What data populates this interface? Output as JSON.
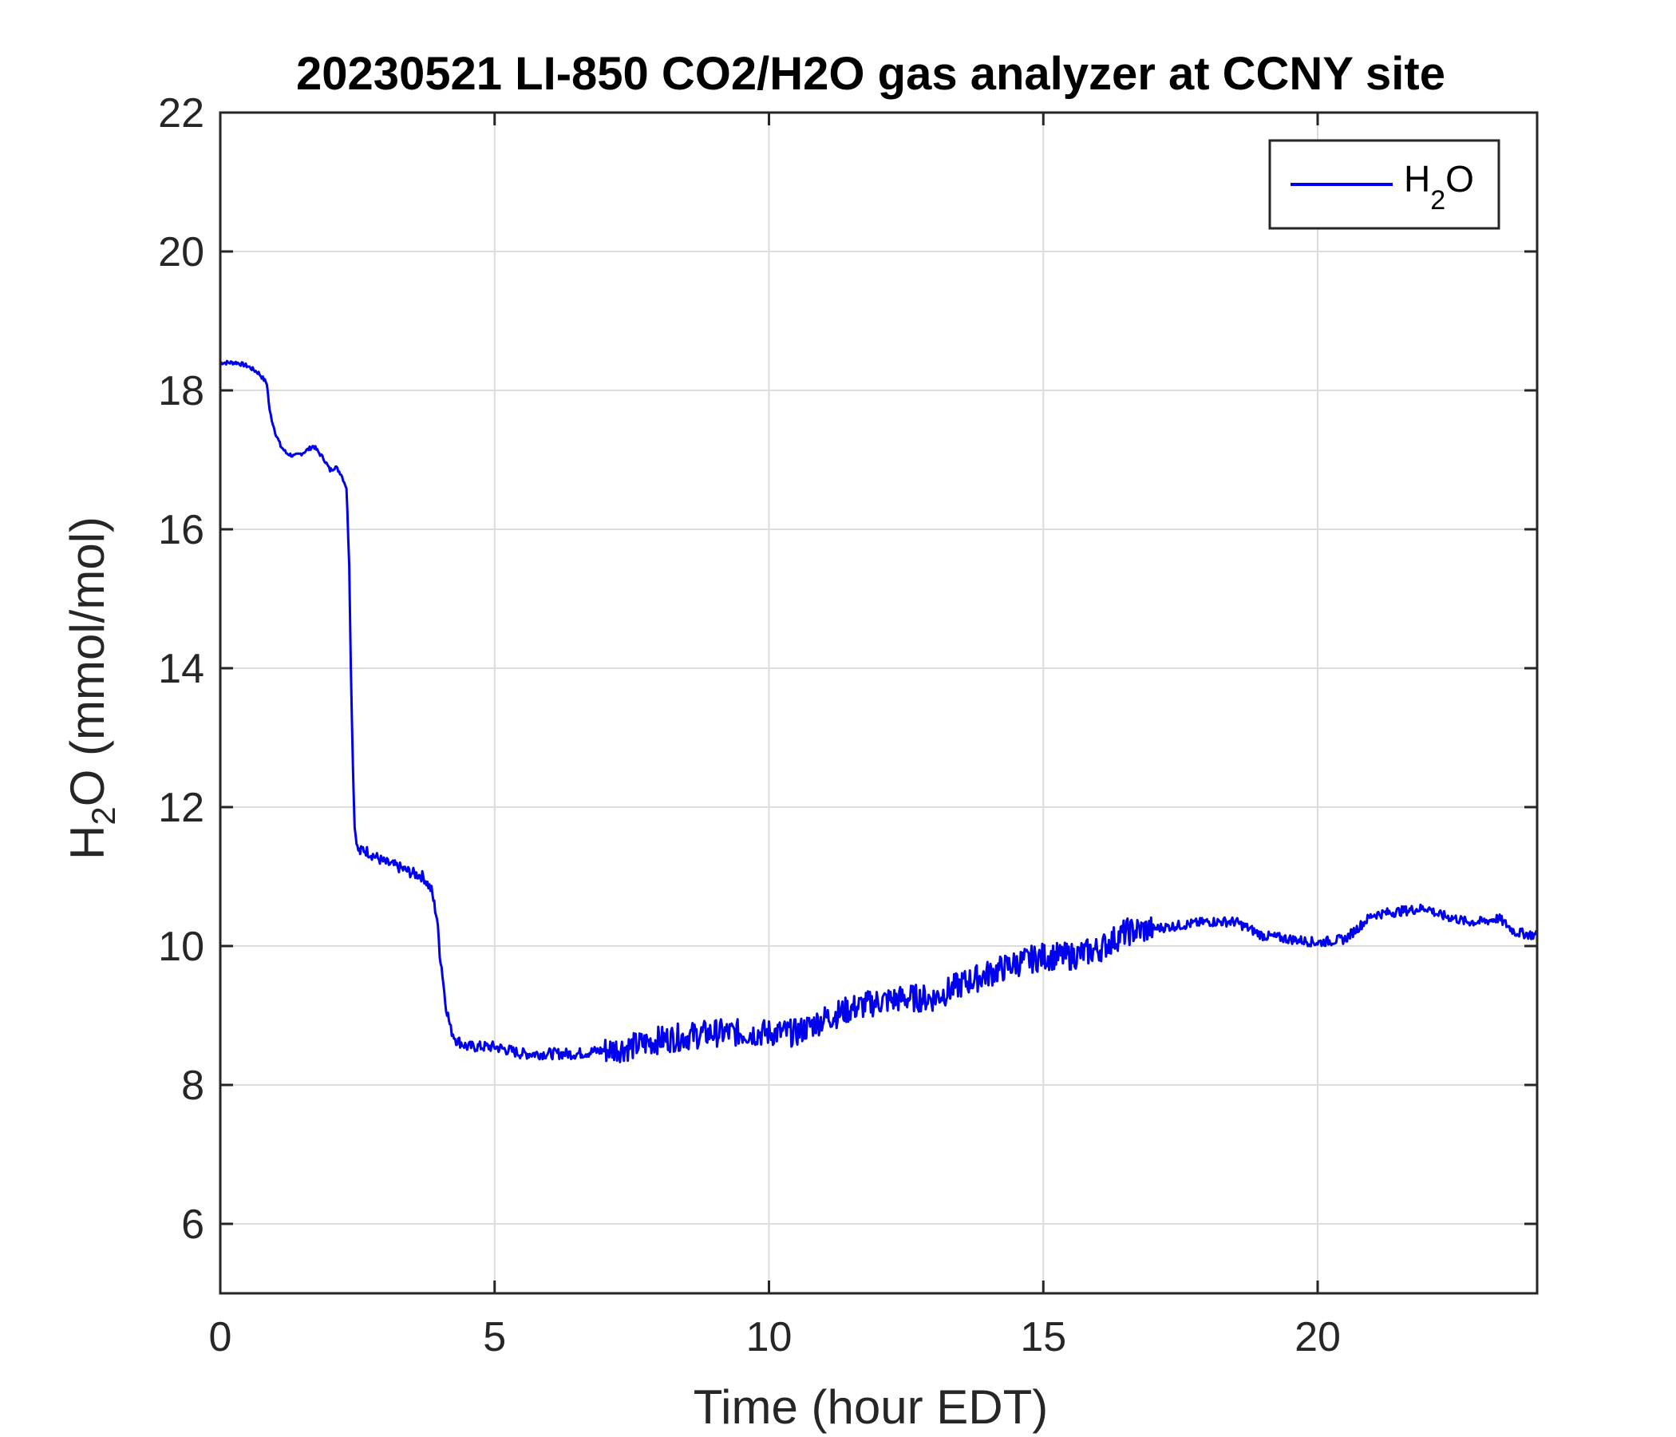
{
  "chart_data": {
    "type": "line",
    "title": "20230521 LI-850 CO2/H2O gas analyzer at CCNY site",
    "xlabel": "Time (hour EDT)",
    "ylabel": {
      "main": "H",
      "sub": "2",
      "rest": "O (mmol/mol)"
    },
    "xlim": [
      0,
      24
    ],
    "ylim": [
      5,
      22
    ],
    "xticks": [
      0,
      5,
      10,
      15,
      20
    ],
    "yticks": [
      6,
      8,
      10,
      12,
      14,
      16,
      18,
      20,
      22
    ],
    "grid": true,
    "legend": {
      "position": "top-right",
      "label_main": "H",
      "label_sub": "2",
      "label_rest": "O"
    },
    "colors": {
      "series": "#0000ee",
      "grid": "#dcdcdc",
      "axis": "#262626"
    },
    "series": [
      {
        "name": "H2O",
        "x": [
          0,
          0.3,
          0.5,
          0.7,
          0.85,
          0.9,
          1.0,
          1.1,
          1.2,
          1.35,
          1.5,
          1.7,
          1.8,
          1.9,
          2.0,
          2.1,
          2.2,
          2.3,
          2.35,
          2.38,
          2.42,
          2.45,
          2.5,
          2.55,
          2.6,
          2.8,
          3.0,
          3.2,
          3.5,
          3.7,
          3.85,
          3.95,
          4.0,
          4.05,
          4.1,
          4.2,
          4.3,
          4.5,
          5.0,
          5.5,
          6.0,
          6.5,
          7.0,
          7.5,
          8.0,
          8.5,
          9.0,
          9.5,
          10.0,
          10.5,
          11.0,
          11.5,
          12.0,
          12.5,
          13.0,
          13.5,
          14.0,
          14.5,
          15.0,
          15.5,
          16.0,
          16.5,
          17.0,
          17.5,
          18.0,
          18.5,
          19.0,
          19.5,
          20.0,
          20.5,
          21.0,
          21.5,
          22.0,
          22.2,
          22.5,
          22.7,
          23.0,
          23.3,
          23.6,
          24.0
        ],
        "y": [
          18.4,
          18.4,
          18.35,
          18.25,
          18.1,
          17.7,
          17.4,
          17.2,
          17.1,
          17.05,
          17.1,
          17.2,
          17.1,
          17.0,
          16.85,
          16.9,
          16.8,
          16.6,
          15.5,
          14.0,
          12.5,
          11.7,
          11.4,
          11.35,
          11.4,
          11.3,
          11.2,
          11.15,
          11.05,
          11.0,
          10.8,
          10.4,
          9.9,
          9.6,
          9.2,
          8.8,
          8.65,
          8.55,
          8.55,
          8.45,
          8.45,
          8.45,
          8.5,
          8.55,
          8.65,
          8.7,
          8.75,
          8.75,
          8.75,
          8.75,
          8.95,
          9.1,
          9.2,
          9.25,
          9.25,
          9.45,
          9.6,
          9.75,
          9.85,
          9.85,
          9.95,
          10.2,
          10.25,
          10.3,
          10.35,
          10.35,
          10.15,
          10.1,
          10.05,
          10.1,
          10.45,
          10.5,
          10.55,
          10.45,
          10.4,
          10.35,
          10.35,
          10.4,
          10.2,
          10.15
        ]
      }
    ]
  }
}
